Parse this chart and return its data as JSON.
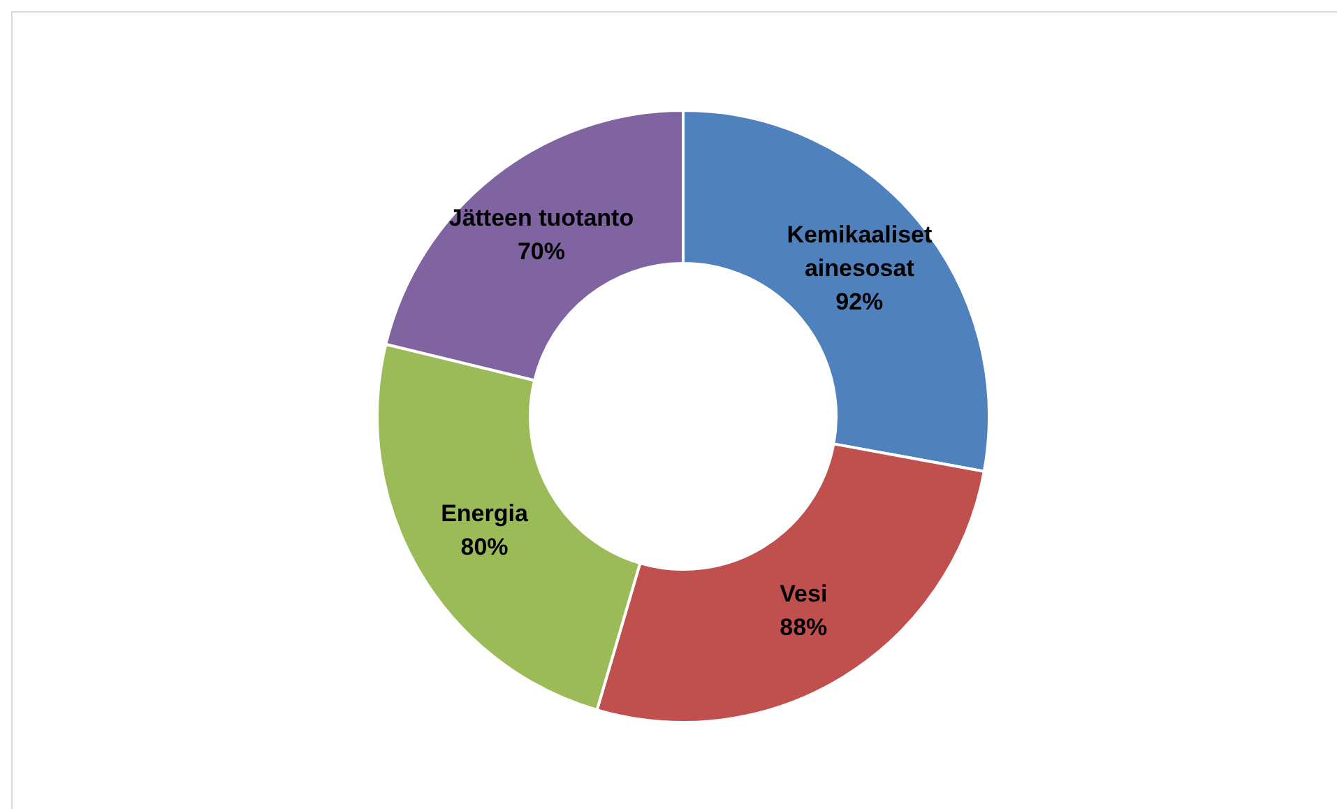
{
  "chart_data": {
    "type": "donut",
    "categories": [
      "Kemikaaliset ainesosat",
      "Vesi",
      "Energia",
      "Jätteen tuotanto"
    ],
    "values": [
      92,
      88,
      80,
      70
    ],
    "value_labels": [
      "92%",
      "88%",
      "80%",
      "70%"
    ],
    "colors": [
      "#4f81bd",
      "#c0504d",
      "#9bbb59",
      "#8064a2"
    ],
    "legend": false
  }
}
